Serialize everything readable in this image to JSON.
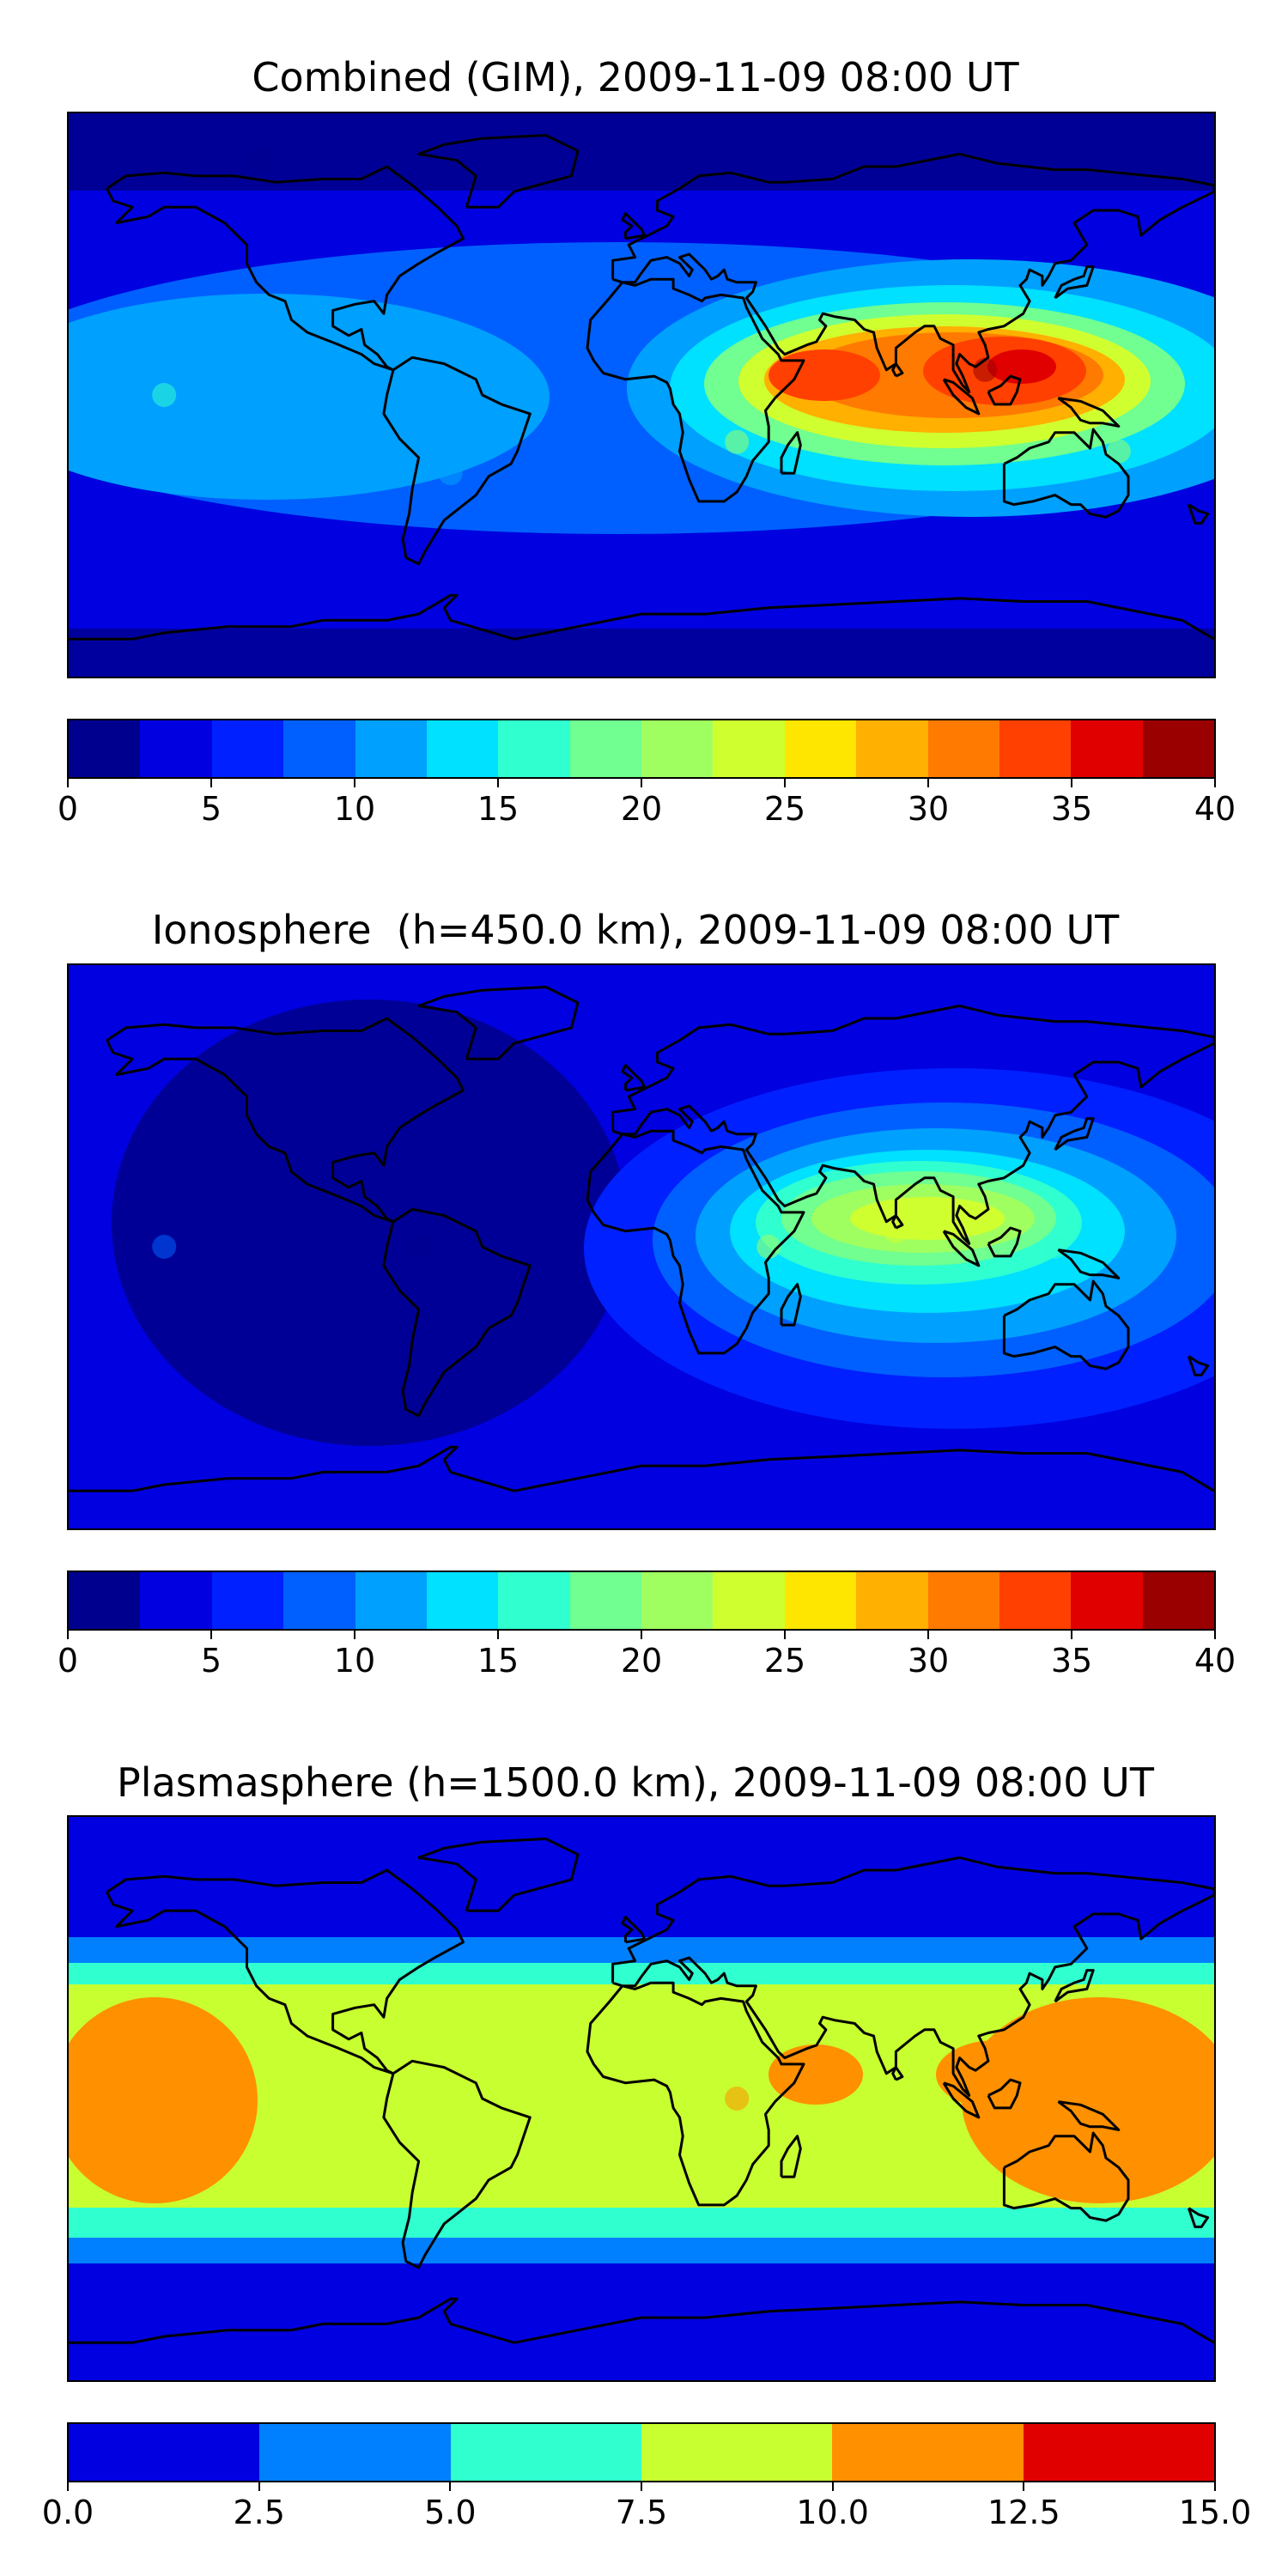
{
  "chart_data": [
    {
      "type": "heatmap",
      "title": "Combined (GIM), 2009-11-09 08:00 UT",
      "xlabel": "",
      "ylabel": "",
      "colorbar": {
        "levels": [
          0,
          2.5,
          5,
          7.5,
          10,
          12.5,
          15,
          17.5,
          20,
          22.5,
          25,
          27.5,
          30,
          32.5,
          35,
          37.5,
          40
        ],
        "ticks": [
          0,
          5,
          10,
          15,
          20,
          25,
          30,
          35,
          40
        ],
        "tick_labels": [
          "0",
          "5",
          "10",
          "15",
          "20",
          "25",
          "30",
          "35",
          "40"
        ],
        "colors": [
          "#00008f",
          "#0000e0",
          "#0020ff",
          "#0060ff",
          "#00a0ff",
          "#00e0ff",
          "#30ffd0",
          "#70ff90",
          "#a0ff60",
          "#d0ff30",
          "#ffe600",
          "#ffb000",
          "#ff7a00",
          "#ff4000",
          "#e00000",
          "#9a0000"
        ]
      },
      "features": [
        {
          "lon": 68,
          "lat": 8,
          "value": 34
        },
        {
          "lon": 108,
          "lat": 8,
          "value": 38
        },
        {
          "lon": 30,
          "lat": -15,
          "value": 22
        },
        {
          "lon": 150,
          "lat": -18,
          "value": 20
        },
        {
          "lon": -150,
          "lat": 0,
          "value": 16
        },
        {
          "lon": -60,
          "lat": -25,
          "value": 10
        },
        {
          "lon": -120,
          "lat": 75,
          "value": 2
        }
      ]
    },
    {
      "type": "heatmap",
      "title": "Ionosphere  (h=450.0 km), 2009-11-09 08:00 UT",
      "xlabel": "",
      "ylabel": "",
      "colorbar": {
        "levels": [
          0,
          2.5,
          5,
          7.5,
          10,
          12.5,
          15,
          17.5,
          20,
          22.5,
          25,
          27.5,
          30,
          32.5,
          35,
          37.5,
          40
        ],
        "ticks": [
          0,
          5,
          10,
          15,
          20,
          25,
          30,
          35,
          40
        ],
        "tick_labels": [
          "0",
          "5",
          "10",
          "15",
          "20",
          "25",
          "30",
          "35",
          "40"
        ],
        "colors": [
          "#00008f",
          "#0000e0",
          "#0020ff",
          "#0060ff",
          "#00a0ff",
          "#00e0ff",
          "#30ffd0",
          "#70ff90",
          "#a0ff60",
          "#d0ff30",
          "#ffe600",
          "#ffb000",
          "#ff7a00",
          "#ff4000",
          "#e00000",
          "#9a0000"
        ]
      },
      "features": [
        {
          "lon": 80,
          "lat": 5,
          "value": 23
        },
        {
          "lon": 40,
          "lat": 0,
          "value": 20
        },
        {
          "lon": 130,
          "lat": 0,
          "value": 16
        },
        {
          "lon": -70,
          "lat": 0,
          "value": 2
        },
        {
          "lon": -150,
          "lat": 0,
          "value": 8
        }
      ]
    },
    {
      "type": "heatmap",
      "title": "Plasmasphere (h=1500.0 km), 2009-11-09 08:00 UT",
      "xlabel": "",
      "ylabel": "",
      "colorbar": {
        "levels": [
          0.0,
          2.5,
          5.0,
          7.5,
          10.0,
          12.5,
          15.0
        ],
        "ticks": [
          0.0,
          2.5,
          5.0,
          7.5,
          10.0,
          12.5,
          15.0
        ],
        "tick_labels": [
          "0.0",
          "2.5",
          "5.0",
          "7.5",
          "10.0",
          "12.5",
          "15.0"
        ],
        "colors": [
          "#0000e0",
          "#0080ff",
          "#30ffd0",
          "#c8ff30",
          "#ff9000",
          "#e00000"
        ]
      },
      "features": [
        {
          "lon": -165,
          "lat": -5,
          "value": 11
        },
        {
          "lon": 30,
          "lat": 0,
          "value": 11
        },
        {
          "lon": 120,
          "lat": 10,
          "value": 11
        },
        {
          "lon": 165,
          "lat": -10,
          "value": 11
        },
        {
          "lon": 0,
          "lat": 0,
          "value": 8.5
        },
        {
          "lon": 0,
          "lat": 65,
          "value": 1.5
        },
        {
          "lon": 0,
          "lat": -65,
          "value": 1.5
        }
      ]
    }
  ]
}
